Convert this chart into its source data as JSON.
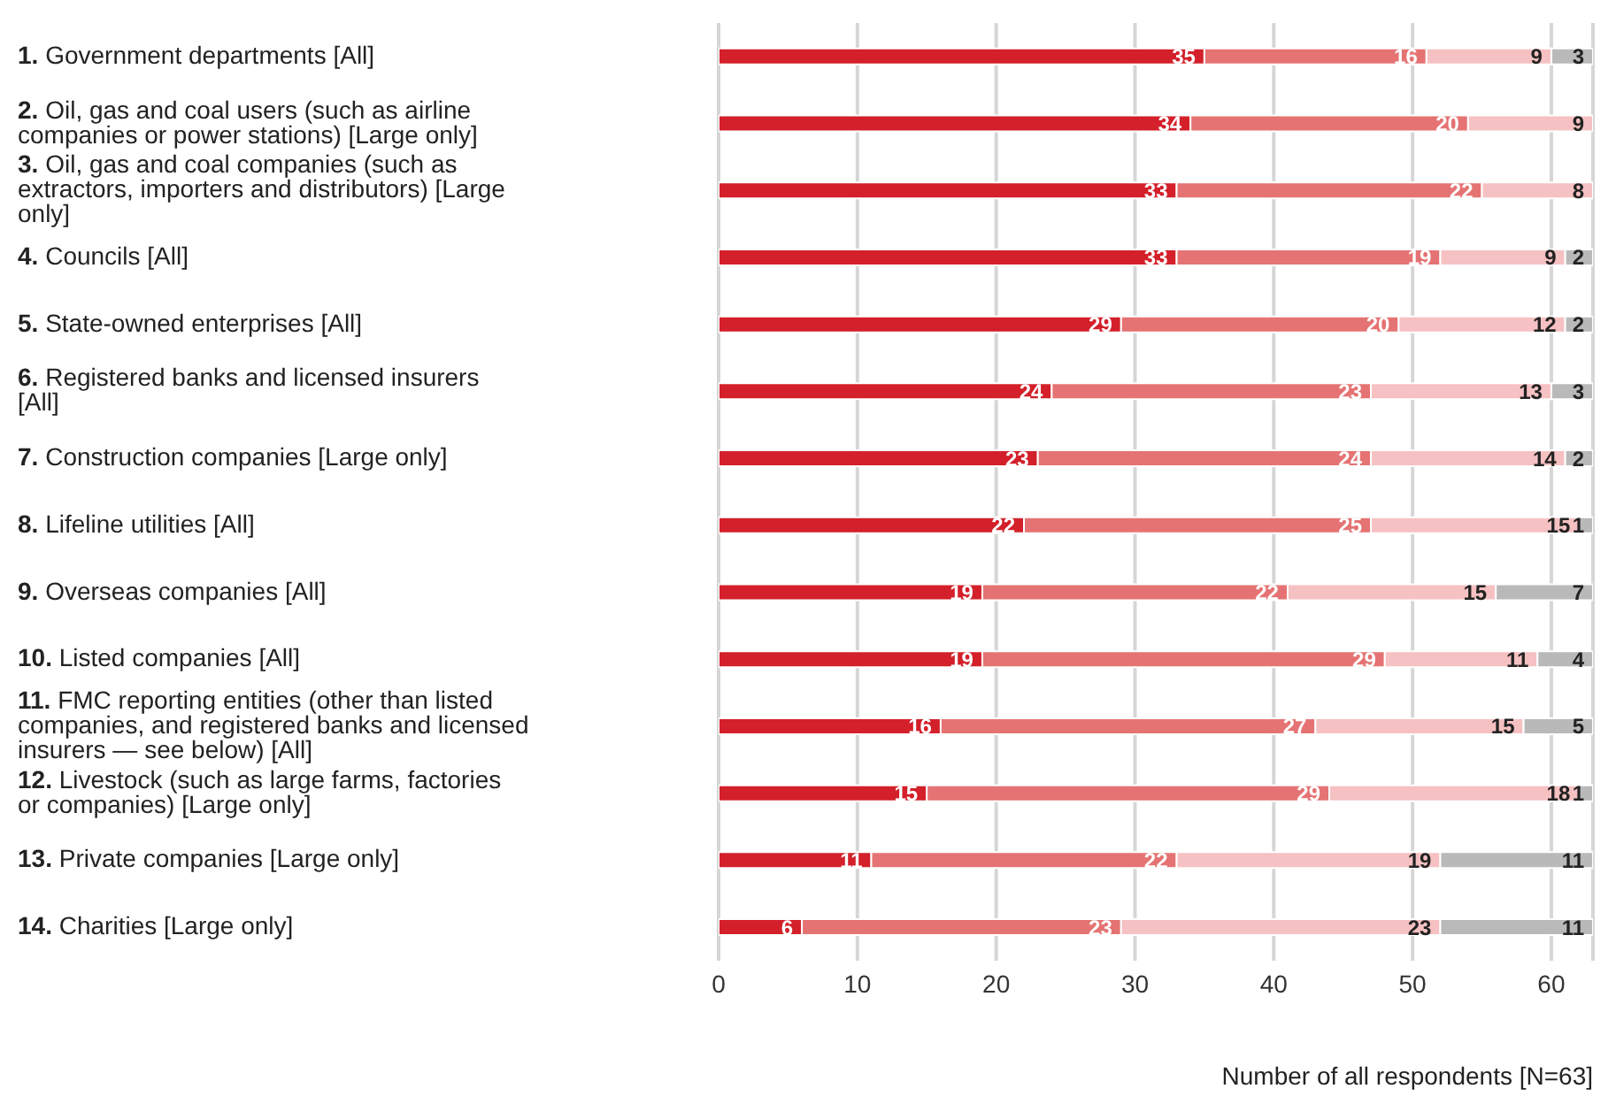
{
  "chart_data": {
    "type": "bar",
    "orientation": "horizontal",
    "stacked": true,
    "xlabel": "Number of all respondents [N=63]",
    "categories": [
      "1. Government departments [All]",
      "2. Oil, gas and coal users (such as airline companies or power stations) [Large only]",
      "3. Oil, gas and coal companies (such as extractors, importers and distributors) [Large only]",
      "4. Councils [All]",
      "5. State-owned enterprises [All]",
      "6. Registered banks and licensed insurers [All]",
      "7. Construction companies [Large only]",
      "8. Lifeline utilities [All]",
      "9. Overseas companies [All]",
      "10. Listed companies [All]",
      "11. FMC reporting entities (other than listed companies, and registered banks and licensed insurers — see below) [All]",
      "12. Livestock (such as large farms, factories or companies) [Large only]",
      "13. Private companies [Large only]",
      "14. Charities [Large only]"
    ],
    "series": [
      {
        "color": "#d3202a",
        "values": [
          35,
          34,
          33,
          33,
          29,
          24,
          23,
          22,
          19,
          19,
          16,
          15,
          11,
          6
        ],
        "value_labels": [
          "35",
          "34",
          "33",
          "33",
          "29",
          "24",
          "23",
          "22",
          "19",
          "19",
          "16",
          "15",
          "11",
          "6"
        ]
      },
      {
        "color": "#e57373",
        "values": [
          16,
          20,
          22,
          19,
          20,
          23,
          24,
          25,
          22,
          29,
          27,
          29,
          22,
          23
        ],
        "value_labels": [
          "16",
          "20",
          "22",
          "19",
          "20",
          "23",
          "24",
          "25",
          "22",
          "29",
          "27",
          "29",
          "22",
          "23"
        ]
      },
      {
        "color": "#f6c1c2",
        "values": [
          9,
          9,
          8,
          9,
          12,
          13,
          14,
          15,
          15,
          11,
          15,
          18,
          19,
          23
        ],
        "value_labels": [
          "9",
          "9",
          "8",
          "9",
          "12",
          "13",
          "14",
          "15",
          "15",
          "11",
          "15",
          "18",
          "19",
          "23"
        ]
      },
      {
        "color": "#b9b9b9",
        "values": [
          3,
          0,
          0,
          2,
          2,
          3,
          2,
          1,
          7,
          4,
          5,
          1,
          11,
          11
        ],
        "value_labels": [
          "3",
          null,
          null,
          "2",
          "2",
          "3",
          "2",
          "1",
          "7",
          "4",
          "5",
          "1",
          "11",
          "11"
        ]
      }
    ],
    "xlim": [
      0,
      63
    ],
    "xticks": [
      0,
      10,
      20,
      30,
      40,
      50,
      60
    ],
    "grid": "x",
    "legend": false
  }
}
